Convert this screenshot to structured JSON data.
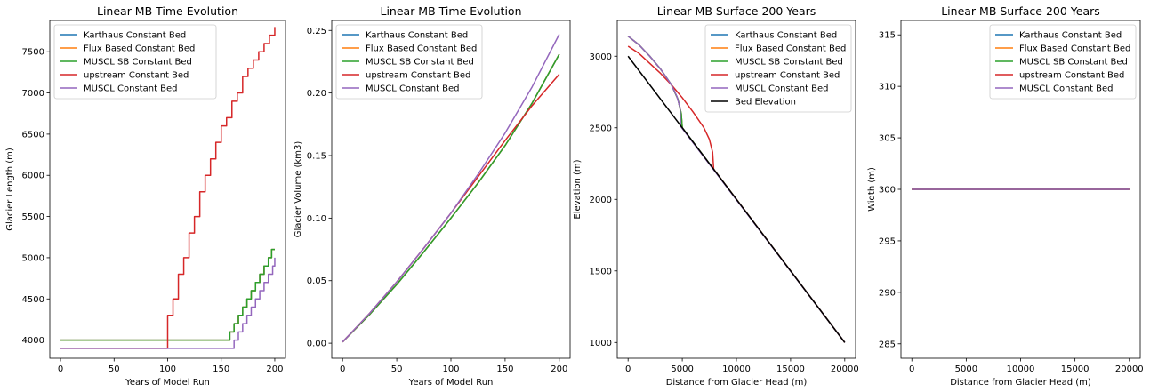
{
  "chart_data": [
    {
      "type": "line",
      "title": "Linear MB Time Evolution",
      "xlabel": "Years of Model Run",
      "ylabel": "Glacier Length (m)",
      "xlim": [
        -10,
        210
      ],
      "ylim": [
        3780,
        7880
      ],
      "xticks": [
        0,
        50,
        100,
        150,
        200
      ],
      "yticks": [
        4000,
        4500,
        5000,
        5500,
        6000,
        6500,
        7000,
        7500
      ],
      "legend_position": "top-left",
      "series": [
        {
          "name": "Karthaus Constant Bed",
          "color": "#1f77b4",
          "style": "step",
          "x": [
            0,
            155,
            158,
            162,
            166,
            170,
            174,
            178,
            182,
            186,
            190,
            194,
            197,
            200
          ],
          "y": [
            4000,
            4000,
            4100,
            4200,
            4300,
            4400,
            4500,
            4600,
            4700,
            4800,
            4900,
            5000,
            5100,
            5100
          ]
        },
        {
          "name": "Flux Based Constant Bed",
          "color": "#ff7f0e",
          "style": "step",
          "x": [
            0,
            155,
            158,
            162,
            166,
            170,
            174,
            178,
            182,
            186,
            190,
            194,
            197,
            200
          ],
          "y": [
            4000,
            4000,
            4100,
            4200,
            4300,
            4400,
            4500,
            4600,
            4700,
            4800,
            4900,
            5000,
            5100,
            5100
          ]
        },
        {
          "name": "MUSCL SB Constant Bed",
          "color": "#2ca02c",
          "style": "step",
          "x": [
            0,
            155,
            158,
            162,
            166,
            170,
            174,
            178,
            182,
            186,
            190,
            194,
            197,
            200
          ],
          "y": [
            4000,
            4000,
            4100,
            4200,
            4300,
            4400,
            4500,
            4600,
            4700,
            4800,
            4900,
            5000,
            5100,
            5100
          ]
        },
        {
          "name": "upstream Constant Bed",
          "color": "#d62728",
          "style": "step",
          "x": [
            0,
            95,
            100,
            105,
            110,
            115,
            120,
            125,
            130,
            135,
            140,
            145,
            150,
            155,
            160,
            165,
            170,
            175,
            180,
            185,
            190,
            195,
            200
          ],
          "y": [
            3900,
            3900,
            4300,
            4500,
            4800,
            5000,
            5300,
            5500,
            5800,
            6000,
            6200,
            6400,
            6600,
            6700,
            6900,
            7000,
            7200,
            7300,
            7400,
            7500,
            7600,
            7700,
            7800
          ]
        },
        {
          "name": "MUSCL Constant Bed",
          "color": "#9467bd",
          "style": "step",
          "x": [
            0,
            158,
            162,
            166,
            170,
            174,
            178,
            182,
            186,
            190,
            194,
            198,
            200
          ],
          "y": [
            3900,
            3900,
            4000,
            4100,
            4200,
            4300,
            4400,
            4500,
            4600,
            4700,
            4800,
            4900,
            5000
          ]
        }
      ]
    },
    {
      "type": "line",
      "title": "Linear MB Time Evolution",
      "xlabel": "Years of Model Run",
      "ylabel": "Glacier Volume (km3)",
      "xlim": [
        -10,
        210
      ],
      "ylim": [
        -0.012,
        0.258
      ],
      "xticks": [
        0,
        50,
        100,
        150,
        200
      ],
      "yticks": [
        0.0,
        0.05,
        0.1,
        0.15,
        0.2,
        0.25
      ],
      "ytick_labels": [
        "0.00",
        "0.05",
        "0.10",
        "0.15",
        "0.20",
        "0.25"
      ],
      "legend_position": "top-left",
      "series": [
        {
          "name": "Karthaus Constant Bed",
          "color": "#1f77b4",
          "x": [
            0,
            25,
            50,
            75,
            100,
            125,
            150,
            175,
            200
          ],
          "y": [
            0.001,
            0.023,
            0.047,
            0.073,
            0.1,
            0.128,
            0.158,
            0.192,
            0.231
          ]
        },
        {
          "name": "Flux Based Constant Bed",
          "color": "#ff7f0e",
          "x": [
            0,
            25,
            50,
            75,
            100,
            125,
            150,
            175,
            200
          ],
          "y": [
            0.001,
            0.023,
            0.047,
            0.073,
            0.1,
            0.128,
            0.158,
            0.192,
            0.231
          ]
        },
        {
          "name": "MUSCL SB Constant Bed",
          "color": "#2ca02c",
          "x": [
            0,
            25,
            50,
            75,
            100,
            125,
            150,
            175,
            200
          ],
          "y": [
            0.001,
            0.023,
            0.047,
            0.073,
            0.1,
            0.128,
            0.158,
            0.192,
            0.231
          ]
        },
        {
          "name": "upstream Constant Bed",
          "color": "#d62728",
          "x": [
            0,
            25,
            50,
            75,
            100,
            125,
            150,
            175,
            200
          ],
          "y": [
            0.001,
            0.024,
            0.049,
            0.076,
            0.104,
            0.133,
            0.162,
            0.19,
            0.215
          ]
        },
        {
          "name": "MUSCL Constant Bed",
          "color": "#9467bd",
          "x": [
            0,
            25,
            50,
            75,
            100,
            125,
            150,
            175,
            200
          ],
          "y": [
            0.001,
            0.024,
            0.049,
            0.076,
            0.104,
            0.135,
            0.168,
            0.205,
            0.247
          ]
        }
      ]
    },
    {
      "type": "line",
      "title": "Linear MB Surface 200 Years",
      "xlabel": "Distance from Glacier Head (m)",
      "ylabel": "Elevation (m)",
      "xlim": [
        -1000,
        21000
      ],
      "ylim": [
        890,
        3250
      ],
      "xticks": [
        0,
        5000,
        10000,
        15000,
        20000
      ],
      "yticks": [
        1000,
        1500,
        2000,
        2500,
        3000
      ],
      "legend_position": "top-right",
      "series": [
        {
          "name": "Karthaus Constant Bed",
          "color": "#1f77b4",
          "x": [
            0,
            1000,
            2000,
            3000,
            4000,
            4600,
            4900,
            5000,
            20000
          ],
          "y": [
            3140,
            3080,
            3000,
            2910,
            2800,
            2700,
            2600,
            2500,
            1000
          ]
        },
        {
          "name": "Flux Based Constant Bed",
          "color": "#ff7f0e",
          "x": [
            0,
            1000,
            2000,
            3000,
            4000,
            4600,
            4900,
            5000,
            20000
          ],
          "y": [
            3140,
            3080,
            3000,
            2910,
            2800,
            2700,
            2600,
            2500,
            1000
          ]
        },
        {
          "name": "MUSCL SB Constant Bed",
          "color": "#2ca02c",
          "x": [
            0,
            1000,
            2000,
            3000,
            4000,
            4600,
            4900,
            5000,
            20000
          ],
          "y": [
            3140,
            3080,
            3000,
            2910,
            2800,
            2700,
            2600,
            2500,
            1000
          ]
        },
        {
          "name": "upstream Constant Bed",
          "color": "#d62728",
          "x": [
            0,
            1000,
            2000,
            3000,
            4000,
            5000,
            6000,
            7000,
            7500,
            7800,
            7900,
            20000
          ],
          "y": [
            3070,
            3020,
            2950,
            2880,
            2800,
            2710,
            2610,
            2500,
            2420,
            2330,
            2210,
            1000
          ]
        },
        {
          "name": "MUSCL Constant Bed",
          "color": "#9467bd",
          "x": [
            0,
            1000,
            2000,
            3000,
            4000,
            4500,
            4800,
            4850,
            20000
          ],
          "y": [
            3140,
            3080,
            3000,
            2910,
            2800,
            2720,
            2640,
            2510,
            1000
          ]
        },
        {
          "name": "Bed Elevation",
          "color": "#000000",
          "x": [
            0,
            20000
          ],
          "y": [
            3000,
            1000
          ]
        }
      ]
    },
    {
      "type": "line",
      "title": "Linear MB Surface 200 Years",
      "xlabel": "Distance from Glacier Head (m)",
      "ylabel": "Width (m)",
      "xlim": [
        -1000,
        21000
      ],
      "ylim": [
        283.6,
        316.4
      ],
      "xticks": [
        0,
        5000,
        10000,
        15000,
        20000
      ],
      "yticks": [
        285,
        290,
        295,
        300,
        305,
        310,
        315
      ],
      "legend_position": "top-right",
      "series": [
        {
          "name": "Karthaus Constant Bed",
          "color": "#1f77b4",
          "x": [
            0,
            20000
          ],
          "y": [
            300,
            300
          ]
        },
        {
          "name": "Flux Based Constant Bed",
          "color": "#ff7f0e",
          "x": [
            0,
            20000
          ],
          "y": [
            300,
            300
          ]
        },
        {
          "name": "MUSCL SB Constant Bed",
          "color": "#2ca02c",
          "x": [
            0,
            20000
          ],
          "y": [
            300,
            300
          ]
        },
        {
          "name": "upstream Constant Bed",
          "color": "#d62728",
          "x": [
            0,
            20000
          ],
          "y": [
            300,
            300
          ]
        },
        {
          "name": "MUSCL Constant Bed",
          "color": "#9467bd",
          "x": [
            0,
            20000
          ],
          "y": [
            300,
            300
          ]
        }
      ]
    }
  ]
}
